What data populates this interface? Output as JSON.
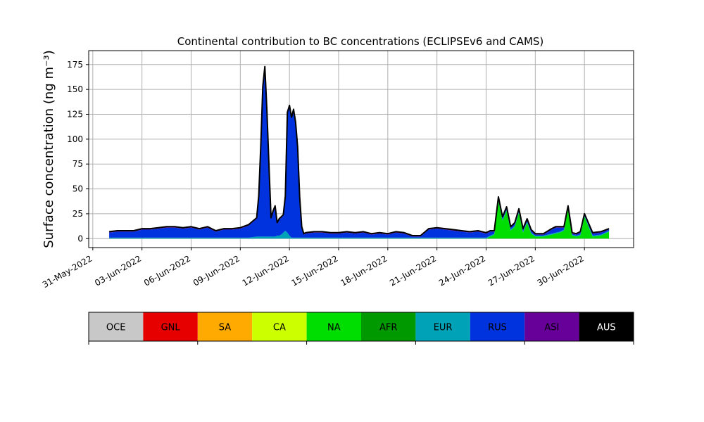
{
  "chart_data": {
    "type": "area",
    "title": "Continental contribution to BC concentrations (ECLIPSEv6 and CAMS)",
    "ylabel": "Surface concentration (ng m⁻³)",
    "xlabel": "",
    "ylim": [
      -9,
      189
    ],
    "xlim": [
      "2022-05-30T18:00",
      "2022-07-03T00:00"
    ],
    "grid": true,
    "y_ticks": [
      0,
      25,
      50,
      75,
      100,
      125,
      150,
      175
    ],
    "x_ticks": [
      "31-May-2022",
      "03-Jun-2022",
      "06-Jun-2022",
      "09-Jun-2022",
      "12-Jun-2022",
      "15-Jun-2022",
      "18-Jun-2022",
      "21-Jun-2022",
      "24-Jun-2022",
      "27-Jun-2022",
      "30-Jun-2022"
    ],
    "x": [
      "2022-06-01T00:00",
      "2022-06-01T12:00",
      "2022-06-02T00:00",
      "2022-06-02T12:00",
      "2022-06-03T00:00",
      "2022-06-03T12:00",
      "2022-06-04T00:00",
      "2022-06-04T12:00",
      "2022-06-05T00:00",
      "2022-06-05T12:00",
      "2022-06-06T00:00",
      "2022-06-06T12:00",
      "2022-06-07T00:00",
      "2022-06-07T12:00",
      "2022-06-08T00:00",
      "2022-06-08T12:00",
      "2022-06-09T00:00",
      "2022-06-09T12:00",
      "2022-06-10T00:00",
      "2022-06-10T03:00",
      "2022-06-10T06:00",
      "2022-06-10T09:00",
      "2022-06-10T12:00",
      "2022-06-10T15:00",
      "2022-06-10T18:00",
      "2022-06-10T21:00",
      "2022-06-11T00:00",
      "2022-06-11T03:00",
      "2022-06-11T06:00",
      "2022-06-11T09:00",
      "2022-06-11T12:00",
      "2022-06-11T15:00",
      "2022-06-11T18:00",
      "2022-06-11T21:00",
      "2022-06-12T00:00",
      "2022-06-12T03:00",
      "2022-06-12T06:00",
      "2022-06-12T09:00",
      "2022-06-12T12:00",
      "2022-06-12T15:00",
      "2022-06-12T18:00",
      "2022-06-12T21:00",
      "2022-06-13T00:00",
      "2022-06-13T12:00",
      "2022-06-14T00:00",
      "2022-06-14T12:00",
      "2022-06-15T00:00",
      "2022-06-15T12:00",
      "2022-06-16T00:00",
      "2022-06-16T12:00",
      "2022-06-17T00:00",
      "2022-06-17T12:00",
      "2022-06-18T00:00",
      "2022-06-18T12:00",
      "2022-06-19T00:00",
      "2022-06-19T12:00",
      "2022-06-20T00:00",
      "2022-06-20T12:00",
      "2022-06-21T00:00",
      "2022-06-21T12:00",
      "2022-06-22T00:00",
      "2022-06-22T12:00",
      "2022-06-23T00:00",
      "2022-06-23T12:00",
      "2022-06-24T00:00",
      "2022-06-24T06:00",
      "2022-06-24T12:00",
      "2022-06-24T18:00",
      "2022-06-25T00:00",
      "2022-06-25T06:00",
      "2022-06-25T12:00",
      "2022-06-25T18:00",
      "2022-06-26T00:00",
      "2022-06-26T06:00",
      "2022-06-26T12:00",
      "2022-06-26T18:00",
      "2022-06-27T00:00",
      "2022-06-27T12:00",
      "2022-06-28T00:00",
      "2022-06-28T06:00",
      "2022-06-28T12:00",
      "2022-06-28T18:00",
      "2022-06-29T00:00",
      "2022-06-29T06:00",
      "2022-06-29T12:00",
      "2022-06-29T18:00",
      "2022-06-30T00:00",
      "2022-06-30T12:00",
      "2022-07-01T00:00",
      "2022-07-01T12:00"
    ],
    "series": [
      {
        "name": "NA",
        "values": [
          0,
          0,
          0,
          0,
          0,
          0,
          0,
          0,
          0,
          0,
          0,
          0,
          0,
          0,
          0,
          0,
          0,
          0,
          0,
          0,
          0,
          0,
          0,
          0,
          0,
          0,
          0,
          0,
          0,
          0,
          0,
          0,
          0,
          0,
          0,
          0,
          0,
          0,
          0,
          0,
          0,
          0,
          0,
          0,
          0,
          0,
          0,
          0,
          0,
          0,
          0,
          0,
          0,
          0,
          0,
          0,
          0,
          0,
          0,
          0,
          0,
          0,
          0,
          0,
          0,
          2,
          4,
          38,
          18,
          28,
          8,
          12,
          26,
          6,
          16,
          5,
          2,
          2,
          4,
          5,
          6,
          8,
          30,
          3,
          2,
          3,
          22,
          2,
          3,
          7
        ]
      },
      {
        "name": "EUR",
        "values": [
          1,
          1,
          1,
          1,
          1,
          1,
          1,
          1,
          1,
          1,
          1,
          1,
          1,
          1,
          1,
          1,
          1,
          1,
          2,
          2,
          2,
          2,
          2,
          2,
          2,
          2,
          2,
          2,
          3,
          3,
          4,
          6,
          8,
          6,
          3,
          1,
          1,
          1,
          1,
          1,
          1,
          1,
          1,
          1,
          1,
          1,
          1,
          1,
          1,
          1,
          1,
          1,
          1,
          1,
          1,
          1,
          1,
          1,
          1,
          1,
          1,
          1,
          1,
          1,
          1,
          1,
          1,
          1,
          1,
          1,
          1,
          1,
          1,
          1,
          1,
          1,
          1,
          1,
          1,
          1,
          1,
          1,
          1,
          1,
          1,
          1,
          1,
          1,
          1,
          1
        ]
      },
      {
        "name": "RUS",
        "values": [
          5,
          6,
          6,
          6,
          8,
          8,
          9,
          10,
          10,
          9,
          10,
          8,
          10,
          6,
          8,
          8,
          9,
          12,
          18,
          40,
          90,
          150,
          170,
          125,
          70,
          18,
          25,
          30,
          12,
          16,
          17,
          17,
          34,
          120,
          130,
          120,
          128,
          115,
          90,
          40,
          10,
          3,
          4,
          5,
          5,
          4,
          4,
          5,
          4,
          5,
          3,
          4,
          3,
          5,
          4,
          1,
          1,
          8,
          9,
          8,
          7,
          6,
          5,
          6,
          4,
          4,
          2,
          2,
          2,
          2,
          2,
          2,
          2,
          2,
          2,
          2,
          1,
          1,
          4,
          5,
          4,
          2,
          1,
          1,
          1,
          2,
          1,
          2,
          2,
          1
        ]
      },
      {
        "name": "ASI",
        "values": [
          1,
          1,
          1,
          1,
          1,
          1,
          1,
          1,
          1,
          1,
          1,
          1,
          1,
          1,
          1,
          1,
          1,
          1,
          1,
          1,
          1,
          1,
          1,
          1,
          1,
          1,
          1,
          1,
          1,
          1,
          1,
          1,
          1,
          1,
          1,
          1,
          1,
          1,
          1,
          1,
          1,
          1,
          1,
          1,
          1,
          1,
          1,
          1,
          1,
          1,
          1,
          1,
          1,
          1,
          1,
          1,
          1,
          1,
          1,
          1,
          1,
          1,
          1,
          1,
          1,
          1,
          1,
          1,
          1,
          1,
          1,
          1,
          1,
          1,
          1,
          1,
          1,
          1,
          1,
          1,
          1,
          1,
          1,
          1,
          1,
          1,
          1,
          1,
          1,
          1
        ]
      }
    ],
    "colors": {
      "OCE": "#c8c8c8",
      "GNL": "#e60000",
      "SA": "#ffaa00",
      "CA": "#ccff00",
      "NA": "#00dd00",
      "AFR": "#009900",
      "EUR": "#00a2b8",
      "RUS": "#0033dd",
      "ASI": "#660099",
      "AUS": "#000000"
    }
  },
  "legend": {
    "items": [
      {
        "label": "OCE",
        "color": "#c8c8c8"
      },
      {
        "label": "GNL",
        "color": "#e60000"
      },
      {
        "label": "SA",
        "color": "#ffaa00"
      },
      {
        "label": "CA",
        "color": "#ccff00"
      },
      {
        "label": "NA",
        "color": "#00dd00"
      },
      {
        "label": "AFR",
        "color": "#009900"
      },
      {
        "label": "EUR",
        "color": "#00a2b8"
      },
      {
        "label": "RUS",
        "color": "#0033dd"
      },
      {
        "label": "ASI",
        "color": "#660099"
      },
      {
        "label": "AUS",
        "color": "#000000"
      }
    ]
  }
}
